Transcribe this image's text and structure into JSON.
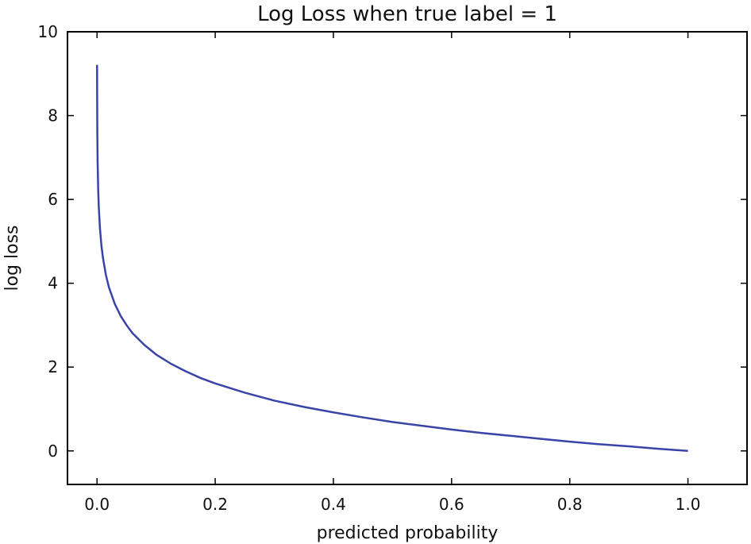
{
  "chart_data": {
    "type": "line",
    "title": "Log Loss when true label = 1",
    "xlabel": "predicted probability",
    "ylabel": "log loss",
    "xlim": [
      -0.05,
      1.1
    ],
    "ylim": [
      -0.8,
      10
    ],
    "xticks": [
      0.0,
      0.2,
      0.4,
      0.6,
      0.8,
      1.0
    ],
    "xtick_labels": [
      "0.0",
      "0.2",
      "0.4",
      "0.6",
      "0.8",
      "1.0"
    ],
    "yticks": [
      0,
      2,
      4,
      6,
      8,
      10
    ],
    "ytick_labels": [
      "0",
      "2",
      "4",
      "6",
      "8",
      "10"
    ],
    "grid": false,
    "legend": "none",
    "series": [
      {
        "color": "#3a44a8",
        "x": [
          0.0001,
          0.0002,
          0.0005,
          0.001,
          0.002,
          0.003,
          0.005,
          0.0075,
          0.01,
          0.015,
          0.02,
          0.03,
          0.04,
          0.05,
          0.06,
          0.08,
          0.1,
          0.125,
          0.15,
          0.175,
          0.2,
          0.25,
          0.3,
          0.35,
          0.4,
          0.45,
          0.5,
          0.55,
          0.6,
          0.65,
          0.7,
          0.75,
          0.8,
          0.85,
          0.9,
          0.95,
          1.0
        ],
        "y": [
          9.21,
          8.52,
          7.6,
          6.91,
          6.21,
          5.81,
          5.3,
          4.89,
          4.61,
          4.2,
          3.91,
          3.51,
          3.22,
          3.0,
          2.81,
          2.53,
          2.3,
          2.08,
          1.9,
          1.74,
          1.61,
          1.39,
          1.2,
          1.05,
          0.92,
          0.8,
          0.69,
          0.6,
          0.51,
          0.43,
          0.36,
          0.29,
          0.22,
          0.16,
          0.11,
          0.05,
          0.0
        ]
      }
    ]
  }
}
